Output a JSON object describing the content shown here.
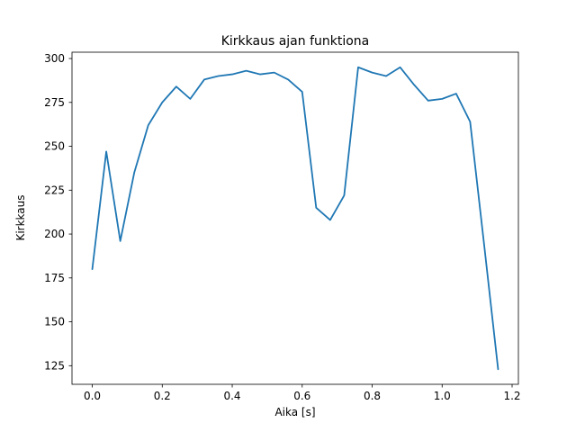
{
  "figure": {
    "background": "#ffffff"
  },
  "chart_data": {
    "type": "line",
    "title": "Kirkkaus ajan funktiona",
    "xlabel": "Aika [s]",
    "ylabel": "Kirkkaus",
    "line_color": "#1f77b4",
    "grid": false,
    "x": [
      0.0,
      0.04,
      0.08,
      0.12,
      0.16,
      0.2,
      0.24,
      0.28,
      0.32,
      0.36,
      0.4,
      0.44,
      0.48,
      0.52,
      0.56,
      0.6,
      0.64,
      0.68,
      0.72,
      0.76,
      0.8,
      0.84,
      0.88,
      0.92,
      0.96,
      1.0,
      1.04,
      1.08,
      1.12,
      1.16
    ],
    "y": [
      180,
      247,
      196,
      235,
      262,
      275,
      284,
      277,
      288,
      290,
      291,
      293,
      291,
      292,
      288,
      281,
      215,
      208,
      222,
      295,
      292,
      290,
      295,
      285,
      276,
      277,
      280,
      264,
      194,
      123
    ],
    "xlim": [
      -0.058,
      1.218
    ],
    "ylim": [
      114.4,
      303.6
    ],
    "xticks": [
      0.0,
      0.2,
      0.4,
      0.6,
      0.8,
      1.0,
      1.2
    ],
    "xtick_labels": [
      "0.0",
      "0.2",
      "0.4",
      "0.6",
      "0.8",
      "1.0",
      "1.2"
    ],
    "yticks": [
      125,
      150,
      175,
      200,
      225,
      250,
      275,
      300
    ],
    "ytick_labels": [
      "125",
      "150",
      "175",
      "200",
      "225",
      "250",
      "275",
      "300"
    ]
  }
}
